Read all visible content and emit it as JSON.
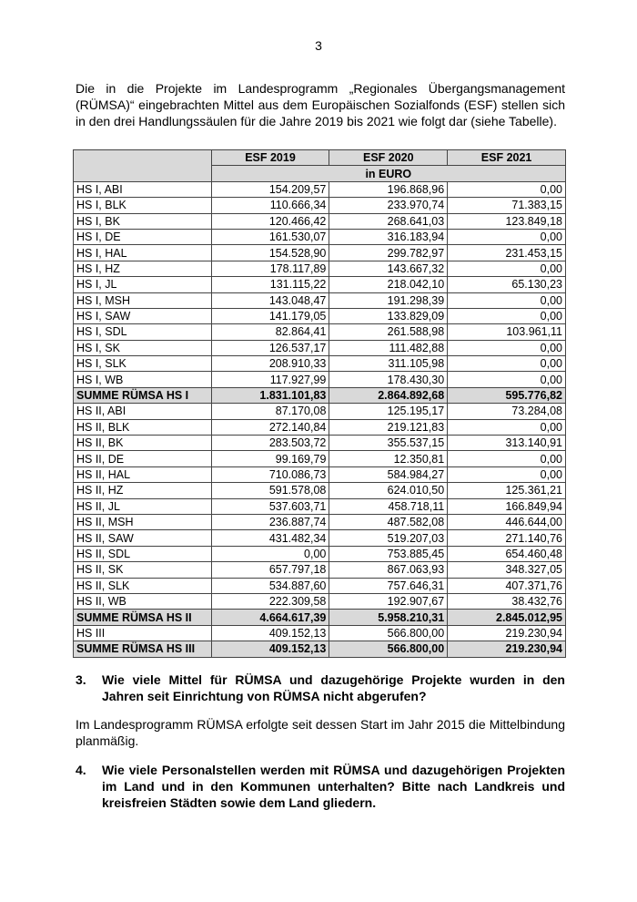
{
  "page_number": "3",
  "intro": "Die in die Projekte im Landesprogramm „Regionales Übergangsmanagement (RÜMSA)“ eingebrachten Mittel aus dem Europäischen Sozialfonds (ESF) stellen sich in den drei Handlungssäulen für die Jahre 2019 bis 2021 wie folgt dar (siehe Tabelle).",
  "table": {
    "headers": [
      "ESF 2019",
      "ESF 2020",
      "ESF 2021"
    ],
    "unit": "in EURO",
    "rows": [
      {
        "label": "HS I, ABI",
        "values": [
          "154.209,57",
          "196.868,96",
          "0,00"
        ]
      },
      {
        "label": "HS I, BLK",
        "values": [
          "110.666,34",
          "233.970,74",
          "71.383,15"
        ]
      },
      {
        "label": "HS I, BK",
        "values": [
          "120.466,42",
          "268.641,03",
          "123.849,18"
        ]
      },
      {
        "label": "HS I, DE",
        "values": [
          "161.530,07",
          "316.183,94",
          "0,00"
        ]
      },
      {
        "label": "HS I, HAL",
        "values": [
          "154.528,90",
          "299.782,97",
          "231.453,15"
        ]
      },
      {
        "label": "HS I, HZ",
        "values": [
          "178.117,89",
          "143.667,32",
          "0,00"
        ]
      },
      {
        "label": "HS I, JL",
        "values": [
          "131.115,22",
          "218.042,10",
          "65.130,23"
        ]
      },
      {
        "label": "HS I, MSH",
        "values": [
          "143.048,47",
          "191.298,39",
          "0,00"
        ]
      },
      {
        "label": "HS I, SAW",
        "values": [
          "141.179,05",
          "133.829,09",
          "0,00"
        ]
      },
      {
        "label": "HS I, SDL",
        "values": [
          "82.864,41",
          "261.588,98",
          "103.961,11"
        ]
      },
      {
        "label": "HS I, SK",
        "values": [
          "126.537,17",
          "111.482,88",
          "0,00"
        ]
      },
      {
        "label": "HS I, SLK",
        "values": [
          "208.910,33",
          "311.105,98",
          "0,00"
        ]
      },
      {
        "label": "HS I, WB",
        "values": [
          "117.927,99",
          "178.430,30",
          "0,00"
        ]
      },
      {
        "label": "SUMME RÜMSA HS I",
        "values": [
          "1.831.101,83",
          "2.864.892,68",
          "595.776,82"
        ],
        "sum": true
      },
      {
        "label": "HS II, ABI",
        "values": [
          "87.170,08",
          "125.195,17",
          "73.284,08"
        ]
      },
      {
        "label": "HS II, BLK",
        "values": [
          "272.140,84",
          "219.121,83",
          "0,00"
        ]
      },
      {
        "label": "HS II, BK",
        "values": [
          "283.503,72",
          "355.537,15",
          "313.140,91"
        ]
      },
      {
        "label": "HS II, DE",
        "values": [
          "99.169,79",
          "12.350,81",
          "0,00"
        ]
      },
      {
        "label": "HS II, HAL",
        "values": [
          "710.086,73",
          "584.984,27",
          "0,00"
        ]
      },
      {
        "label": "HS II, HZ",
        "values": [
          "591.578,08",
          "624.010,50",
          "125.361,21"
        ]
      },
      {
        "label": "HS II, JL",
        "values": [
          "537.603,71",
          "458.718,11",
          "166.849,94"
        ]
      },
      {
        "label": "HS II, MSH",
        "values": [
          "236.887,74",
          "487.582,08",
          "446.644,00"
        ]
      },
      {
        "label": "HS II, SAW",
        "values": [
          "431.482,34",
          "519.207,03",
          "271.140,76"
        ]
      },
      {
        "label": "HS II, SDL",
        "values": [
          "0,00",
          "753.885,45",
          "654.460,48"
        ]
      },
      {
        "label": "HS II, SK",
        "values": [
          "657.797,18",
          "867.063,93",
          "348.327,05"
        ]
      },
      {
        "label": "HS II, SLK",
        "values": [
          "534.887,60",
          "757.646,31",
          "407.371,76"
        ]
      },
      {
        "label": "HS II, WB",
        "values": [
          "222.309,58",
          "192.907,67",
          "38.432,76"
        ]
      },
      {
        "label": "SUMME RÜMSA HS II",
        "values": [
          "4.664.617,39",
          "5.958.210,31",
          "2.845.012,95"
        ],
        "sum": true
      },
      {
        "label": "HS III",
        "values": [
          "409.152,13",
          "566.800,00",
          "219.230,94"
        ]
      },
      {
        "label": "SUMME RÜMSA HS III",
        "values": [
          "409.152,13",
          "566.800,00",
          "219.230,94"
        ],
        "sum": true
      }
    ]
  },
  "q3": {
    "number": "3.",
    "text": "Wie viele Mittel für RÜMSA und dazugehörige Projekte wurden in den Jahren seit Einrichtung von RÜMSA nicht abgerufen?"
  },
  "answer3": "Im Landesprogramm RÜMSA erfolgte seit dessen Start im Jahr 2015 die Mittelbindung planmäßig.",
  "q4": {
    "number": "4.",
    "text": "Wie viele Personalstellen werden mit RÜMSA und dazugehörigen Projekten im Land und in den Kommunen unterhalten? Bitte nach Landkreis und kreisfreien Städten sowie dem Land gliedern."
  }
}
